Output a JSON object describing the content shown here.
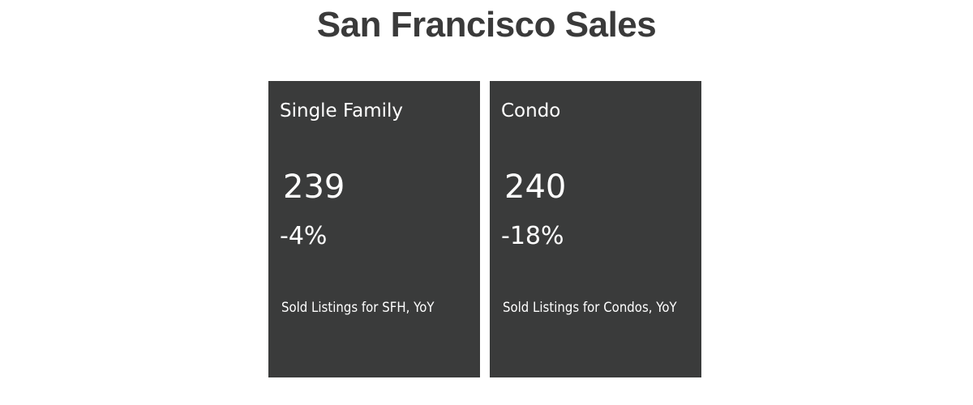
{
  "header": {
    "title": "San Francisco Sales"
  },
  "cards": [
    {
      "label": "Single Family",
      "value": "239",
      "change": "-4%",
      "caption": "Sold Listings for SFH, YoY"
    },
    {
      "label": "Condo",
      "value": "240",
      "change": "-18%",
      "caption": "Sold Listings for Condos, YoY"
    }
  ]
}
